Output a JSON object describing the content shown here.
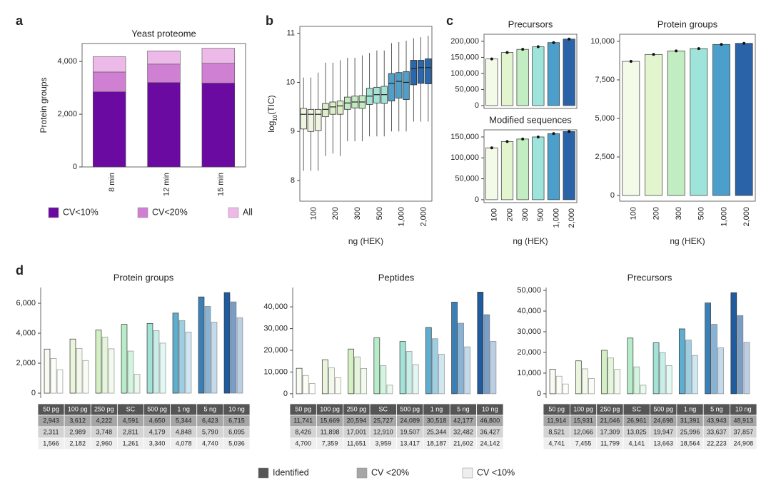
{
  "chart_data": [
    {
      "type": "stacked_bar",
      "panel": "a",
      "title": "Yeast proteome",
      "ylabel": "Protein groups",
      "frame": true,
      "legend": "bottom",
      "categories": [
        "8 min",
        "12 min",
        "15 min"
      ],
      "series": [
        {
          "name": "CV<10%",
          "color": "#6a0aa0",
          "values": [
            2850,
            3200,
            3180
          ]
        },
        {
          "name": "CV<20%",
          "color": "#cf80d3",
          "values": [
            750,
            700,
            750
          ]
        },
        {
          "name": "All",
          "color": "#edb9e8",
          "values": [
            580,
            500,
            570
          ]
        }
      ],
      "ylim": [
        0,
        4680
      ],
      "yticks": [
        0,
        {
          "value": 2000,
          "label": "2,000"
        },
        {
          "value": 4000,
          "label": "4,000"
        }
      ]
    },
    {
      "type": "box",
      "panel": "b",
      "ylabel": [
        "log",
        "10",
        "(TIC)"
      ],
      "xlabel": "ng (HEK)",
      "frame": true,
      "categories": [
        "100",
        "200",
        "300",
        "500",
        "1,000",
        "2,000"
      ],
      "colors": [
        "#eef6e0",
        "#dcefc8",
        "#c3eac0",
        "#a3e2d6",
        "#4f9fc9",
        "#2b68ab"
      ],
      "values": [
        [
          [
            8.2,
            9.05,
            9.35,
            9.47,
            10.1
          ],
          [
            8.2,
            9.0,
            9.35,
            9.45,
            10.1
          ],
          [
            8.2,
            9.02,
            9.35,
            9.45,
            10.2
          ]
        ],
        [
          [
            8.5,
            9.3,
            9.45,
            9.57,
            10.4
          ],
          [
            8.55,
            9.35,
            9.5,
            9.6,
            10.4
          ],
          [
            8.5,
            9.35,
            9.52,
            9.62,
            10.45
          ]
        ],
        [
          [
            8.8,
            9.45,
            9.58,
            9.7,
            10.5
          ],
          [
            8.8,
            9.48,
            9.6,
            9.72,
            10.5
          ],
          [
            8.8,
            9.47,
            9.6,
            9.73,
            10.55
          ]
        ],
        [
          [
            8.9,
            9.55,
            9.72,
            9.88,
            10.6
          ],
          [
            8.9,
            9.58,
            9.75,
            9.9,
            10.65
          ],
          [
            8.9,
            9.57,
            9.75,
            9.92,
            10.65
          ]
        ],
        [
          [
            9.0,
            9.62,
            9.98,
            10.18,
            10.8
          ],
          [
            9.0,
            9.68,
            10.02,
            10.2,
            10.82
          ],
          [
            9.0,
            9.65,
            10.0,
            10.22,
            10.85
          ]
        ],
        [
          [
            9.2,
            9.95,
            10.28,
            10.45,
            10.9
          ],
          [
            9.2,
            9.98,
            10.3,
            10.45,
            10.92
          ],
          [
            9.2,
            9.97,
            10.3,
            10.48,
            10.95
          ]
        ]
      ],
      "ylim": [
        7.58,
        11.14
      ],
      "yticks": [
        8,
        9,
        10,
        11
      ]
    },
    {
      "type": "bar",
      "panel": "c",
      "title": "Precursors",
      "frame": true,
      "categories": [
        "100",
        "200",
        "300",
        "500",
        "1,000",
        "2,000"
      ],
      "colors": [
        "#f3fae8",
        "#e2f5cf",
        "#c2edc3",
        "#9ee4da",
        "#4d9fcb",
        "#2a63a8"
      ],
      "values": [
        145000,
        165000,
        175000,
        183000,
        196000,
        207000
      ],
      "ylim": [
        -9000,
        222000
      ],
      "yticks": [
        0,
        {
          "value": 50000,
          "label": "50,000"
        },
        {
          "value": 100000,
          "label": "100,000"
        },
        {
          "value": 150000,
          "label": "150,000"
        },
        {
          "value": 200000,
          "label": "200,000"
        }
      ]
    },
    {
      "type": "bar",
      "title": "Modified sequences",
      "xlabel": "ng (HEK)",
      "frame": true,
      "rotate_labels": true,
      "categories": [
        "100",
        "200",
        "300",
        "500",
        "1,000",
        "2,000"
      ],
      "colors": [
        "#f3fae8",
        "#e2f5cf",
        "#c2edc3",
        "#9ee4da",
        "#4d9fcb",
        "#2a63a8"
      ],
      "values": [
        124000,
        139000,
        145000,
        150000,
        158000,
        163000
      ],
      "ylim": [
        -7000,
        167000
      ],
      "yticks": [
        0,
        {
          "value": 50000,
          "label": "50,000"
        },
        {
          "value": 100000,
          "label": "100,000"
        },
        {
          "value": 150000,
          "label": "150,000"
        }
      ]
    },
    {
      "type": "bar",
      "title": "Protein groups",
      "xlabel": "ng (HEK)",
      "frame": true,
      "rotate_labels": true,
      "categories": [
        "100",
        "200",
        "300",
        "500",
        "1,000",
        "2,000"
      ],
      "colors": [
        "#f3fae8",
        "#e2f5cf",
        "#c2edc3",
        "#9ee4da",
        "#4d9fcb",
        "#2a63a8"
      ],
      "values": [
        8700,
        9150,
        9380,
        9530,
        9800,
        9870
      ],
      "ylim": [
        -370,
        10460
      ],
      "yticks": [
        0,
        {
          "value": 2500,
          "label": "2,500"
        },
        {
          "value": 5000,
          "label": "5,000"
        },
        {
          "value": 7500,
          "label": "7,500"
        },
        {
          "value": 10000,
          "label": "10,000"
        }
      ]
    },
    {
      "type": "grouped_bar",
      "panel": "d",
      "title": "Protein groups",
      "frame": false,
      "legend": "bottom",
      "categories": [
        "50 pg",
        "100 pg",
        "250 pg",
        "SC",
        "500 pg",
        "1 ng",
        "5 ng",
        "10 ng"
      ],
      "colors": [
        "#f8fbf2",
        "#eaf5dc",
        "#d4efc4",
        "#b6ecc8",
        "#a3e3d7",
        "#5eaecf",
        "#3a80b7",
        "#1f5c9f"
      ],
      "series": [
        {
          "name": "Identified",
          "color": "#555555",
          "values": [
            2943,
            3612,
            4222,
            4591,
            4650,
            5344,
            6423,
            6715
          ],
          "value_labels": [
            "2,943",
            "3,612",
            "4,222",
            "4,591",
            "4,650",
            "5,344",
            "6,423",
            "6,715"
          ]
        },
        {
          "name": "CV <20%",
          "color": "#a6a6a6",
          "values": [
            2311,
            2989,
            3748,
            2811,
            4179,
            4848,
            5790,
            6095
          ],
          "value_labels": [
            "2,311",
            "2,989",
            "3,748",
            "2,811",
            "4,179",
            "4,848",
            "5,790",
            "6,095"
          ]
        },
        {
          "name": "CV <10%",
          "color": "#eeeeee",
          "values": [
            1566,
            2182,
            2960,
            1261,
            3340,
            4078,
            4740,
            5036
          ],
          "value_labels": [
            "1,566",
            "2,182",
            "2,960",
            "1,261",
            "3,340",
            "4,078",
            "4,740",
            "5,036"
          ]
        }
      ],
      "ylim": [
        -330,
        7050
      ],
      "yticks": [
        0,
        {
          "value": 2000,
          "label": "2,000"
        },
        {
          "value": 4000,
          "label": "4,000"
        },
        {
          "value": 6000,
          "label": "6,000"
        }
      ]
    },
    {
      "type": "grouped_bar",
      "title": "Peptides",
      "frame": false,
      "categories": [
        "50 pg",
        "100 pg",
        "250 pg",
        "SC",
        "500 pg",
        "1 ng",
        "5 ng",
        "10 ng"
      ],
      "colors": [
        "#f8fbf2",
        "#eaf5dc",
        "#d4efc4",
        "#b6ecc8",
        "#a3e3d7",
        "#5eaecf",
        "#3a80b7",
        "#1f5c9f"
      ],
      "series": [
        {
          "name": "Identified",
          "color": "#555555",
          "values": [
            11741,
            15669,
            20594,
            25727,
            24089,
            30518,
            42177,
            46800
          ],
          "value_labels": [
            "11,741",
            "15,669",
            "20,594",
            "25,727",
            "24,089",
            "30,518",
            "42,177",
            "46,800"
          ]
        },
        {
          "name": "CV <20%",
          "color": "#a6a6a6",
          "values": [
            8426,
            11898,
            17001,
            12910,
            19507,
            25344,
            32482,
            36427
          ],
          "value_labels": [
            "8,426",
            "11,898",
            "17,001",
            "12,910",
            "19,507",
            "25,344",
            "32,482",
            "36,427"
          ]
        },
        {
          "name": "CV <10%",
          "color": "#eeeeee",
          "values": [
            4700,
            7359,
            11651,
            3959,
            13417,
            18187,
            21602,
            24142
          ],
          "value_labels": [
            "4,700",
            "7,359",
            "11,651",
            "3,959",
            "13,417",
            "18,187",
            "21,602",
            "24,142"
          ]
        }
      ],
      "ylim": [
        -2000,
        48900
      ],
      "yticks": [
        0,
        {
          "value": 10000,
          "label": "10,000"
        },
        {
          "value": 20000,
          "label": "20,000"
        },
        {
          "value": 30000,
          "label": "30,000"
        },
        {
          "value": 40000,
          "label": "40,000"
        }
      ]
    },
    {
      "type": "grouped_bar",
      "title": "Precursors",
      "frame": false,
      "categories": [
        "50 pg",
        "100 pg",
        "250 pg",
        "SC",
        "500 pg",
        "1 ng",
        "5 ng",
        "10 ng"
      ],
      "colors": [
        "#f8fbf2",
        "#eaf5dc",
        "#d4efc4",
        "#b6ecc8",
        "#a3e3d7",
        "#5eaecf",
        "#3a80b7",
        "#1f5c9f"
      ],
      "series": [
        {
          "name": "Identified",
          "color": "#555555",
          "values": [
            11914,
            15931,
            21046,
            26961,
            24698,
            31391,
            43943,
            48913
          ],
          "value_labels": [
            "11,914",
            "15,931",
            "21,046",
            "26,961",
            "24,698",
            "31,391",
            "43,943",
            "48,913"
          ]
        },
        {
          "name": "CV <20%",
          "color": "#a6a6a6",
          "values": [
            8521,
            12066,
            17309,
            13025,
            19947,
            25996,
            33637,
            37857
          ],
          "value_labels": [
            "8,521",
            "12,066",
            "17,309",
            "13,025",
            "19,947",
            "25,996",
            "33,637",
            "37,857"
          ]
        },
        {
          "name": "CV <10%",
          "color": "#eeeeee",
          "values": [
            4741,
            7455,
            11799,
            4141,
            13663,
            18564,
            22223,
            24908
          ],
          "value_labels": [
            "4,741",
            "7,455",
            "11,799",
            "4,141",
            "13,663",
            "18,564",
            "22,223",
            "24,908"
          ]
        }
      ],
      "ylim": [
        -2100,
        51400
      ],
      "yticks": [
        0,
        {
          "value": 10000,
          "label": "10,000"
        },
        {
          "value": 20000,
          "label": "20,000"
        },
        {
          "value": 30000,
          "label": "30,000"
        },
        {
          "value": 40000,
          "label": "40,000"
        },
        {
          "value": 50000,
          "label": "50,000"
        }
      ]
    }
  ]
}
